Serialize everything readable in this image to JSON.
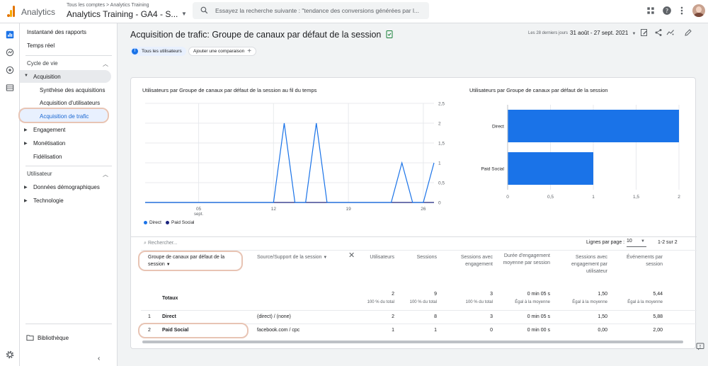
{
  "topbar": {
    "app_name": "Analytics",
    "breadcrumb": "Tous les comptes > Analytics Training",
    "property": "Analytics Training - GA4 - S...",
    "search_placeholder": "Essayez la recherche suivante : \"tendance des conversions générées par l..."
  },
  "nav": {
    "snapshot": "Instantané des rapports",
    "realtime": "Temps réel",
    "lifecycle": "Cycle de vie",
    "acquisition": "Acquisition",
    "acq_overview": "Synthèse des acquisitions",
    "user_acq": "Acquisition d'utilisateurs",
    "traffic_acq": "Acquisition de trafic",
    "engagement": "Engagement",
    "monetization": "Monétisation",
    "retention": "Fidélisation",
    "user": "Utilisateur",
    "demographics": "Données démographiques",
    "tech": "Technologie",
    "library": "Bibliothèque"
  },
  "header": {
    "title": "Acquisition de trafic: Groupe de canaux par défaut de la session",
    "date_label": "Les 28 derniers jours",
    "date_range": "31 août - 27 sept. 2021",
    "all_users_chip": "Tous les utilisateurs",
    "all_users_initial": "T",
    "add_comparison": "Ajouter une comparaison"
  },
  "line_chart": {
    "title": "Utilisateurs par Groupe de canaux par défaut de la session au fil du temps",
    "y_ticks": [
      "2,5",
      "2",
      "1,5",
      "1",
      "0,5",
      "0"
    ],
    "x_ticks": [
      "05",
      "12",
      "19",
      "26"
    ],
    "x_sub": "sept.",
    "legend": [
      {
        "name": "Direct",
        "color": "#1a73e8"
      },
      {
        "name": "Paid Social",
        "color": "#1a237e"
      }
    ]
  },
  "chart_data": [
    {
      "type": "line",
      "title": "Utilisateurs par Groupe de canaux par défaut de la session au fil du temps",
      "x": [
        "31 août",
        "01",
        "02",
        "03",
        "04",
        "05",
        "06",
        "07",
        "08",
        "09",
        "10",
        "11",
        "12",
        "13",
        "14",
        "15",
        "16",
        "17",
        "18",
        "19",
        "20",
        "21",
        "22",
        "23",
        "24",
        "25",
        "26",
        "27"
      ],
      "x_tick_labels": [
        "05 sept.",
        "12",
        "19",
        "26"
      ],
      "series": [
        {
          "name": "Direct",
          "values": [
            0,
            0,
            0,
            0,
            0,
            0,
            0,
            0,
            0,
            0,
            0,
            0,
            0,
            2,
            0,
            0,
            2,
            0,
            0,
            0,
            0,
            0,
            0,
            0,
            1,
            0,
            0,
            1
          ]
        },
        {
          "name": "Paid Social",
          "values": [
            0,
            0,
            0,
            0,
            0,
            0,
            0,
            0,
            0,
            0,
            0,
            0,
            0,
            0,
            0,
            0,
            0,
            0,
            0,
            0,
            0,
            0,
            0,
            0,
            0,
            0,
            0,
            0
          ]
        }
      ],
      "ylim": [
        0,
        2.5
      ],
      "grid": true,
      "legend": "bottom-left"
    },
    {
      "type": "bar",
      "title": "Utilisateurs par Groupe de canaux par défaut de la session",
      "orientation": "horizontal",
      "categories": [
        "Direct",
        "Paid Social"
      ],
      "values": [
        2,
        1
      ],
      "xlim": [
        0,
        2
      ],
      "x_tick_labels": [
        "0",
        "0,5",
        "1",
        "1,5",
        "2"
      ],
      "color": "#1a73e8"
    }
  ],
  "bar_chart": {
    "title": "Utilisateurs par Groupe de canaux par défaut de la session",
    "categories": [
      "Direct",
      "Paid Social"
    ],
    "x_ticks": [
      "0",
      "0,5",
      "1",
      "1,5",
      "2"
    ]
  },
  "table": {
    "search_placeholder": "Rechercher...",
    "rows_per_page_label": "Lignes par page :",
    "rows_per_page": "10",
    "pagination": "1-2 sur 2",
    "col_dimension": "Groupe de canaux par défaut de la session",
    "col_source": "Source/Support de la session",
    "col_users": "Utilisateurs",
    "col_sessions": "Sessions",
    "col_engaged": "Sessions avec engagement",
    "col_duration": "Durée d'engagement moyenne par session",
    "col_engaged_per_user": "Sessions avec engagement par utilisateur",
    "col_events": "Événements par session",
    "totals_label": "Totaux",
    "totals": {
      "users": "2",
      "users_sub": "100 % du total",
      "sessions": "9",
      "sessions_sub": "100 % du total",
      "engaged": "3",
      "engaged_sub": "100 % du total",
      "duration": "0 min 05 s",
      "duration_sub": "Égal à la moyenne",
      "engaged_per_user": "1,50",
      "engaged_per_user_sub": "Égal à la moyenne",
      "events": "5,44",
      "events_sub": "Égal à la moyenne"
    },
    "rows": [
      {
        "idx": "1",
        "dimension": "Direct",
        "source": "(direct) / (none)",
        "users": "2",
        "sessions": "8",
        "engaged": "3",
        "duration": "0 min 05 s",
        "engaged_per_user": "1,50",
        "events": "5,88"
      },
      {
        "idx": "2",
        "dimension": "Paid Social",
        "source": "facebook.com / cpc",
        "users": "1",
        "sessions": "1",
        "engaged": "0",
        "duration": "0 min 00 s",
        "engaged_per_user": "0,00",
        "events": "2,00"
      }
    ]
  }
}
